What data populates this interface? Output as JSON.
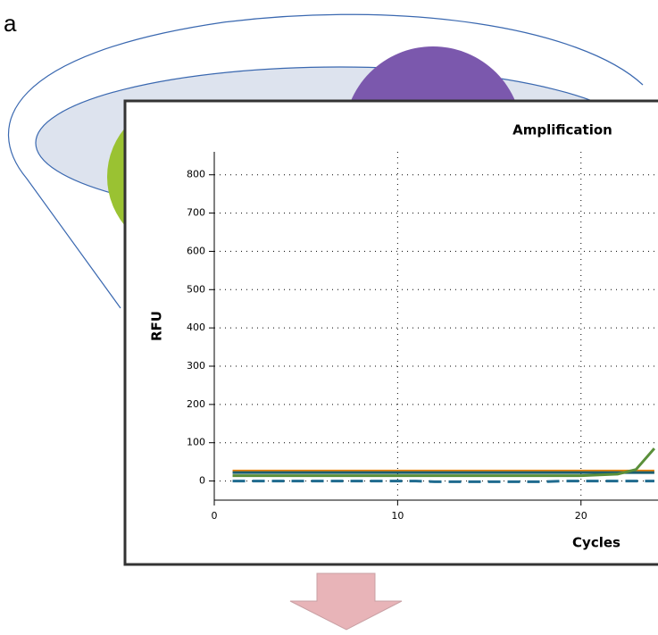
{
  "panel_label": "a",
  "chart_data": {
    "type": "line",
    "title": "Amplification",
    "x_label": "Cycles",
    "y_label": "RFU",
    "x": [
      1,
      2,
      3,
      4,
      5,
      6,
      7,
      8,
      9,
      10,
      11,
      12,
      13,
      14,
      15,
      16,
      17,
      18,
      19,
      20,
      21,
      22,
      23,
      24
    ],
    "series": [
      {
        "color": "#e8820c",
        "dash": false,
        "values": [
          26,
          26,
          26,
          26,
          26,
          26,
          26,
          26,
          26,
          26,
          26,
          26,
          26,
          26,
          26,
          26,
          26,
          26,
          26,
          26,
          26,
          26,
          26,
          26
        ]
      },
      {
        "color": "#1b5e6e",
        "dash": false,
        "values": [
          22,
          22,
          22,
          22,
          22,
          22,
          22,
          22,
          22,
          22,
          22,
          22,
          22,
          22,
          22,
          22,
          22,
          22,
          22,
          22,
          22,
          22,
          22,
          22
        ]
      },
      {
        "color": "#1f6b8f",
        "dash": true,
        "values": [
          0,
          0,
          0,
          0,
          0,
          0,
          0,
          0,
          0,
          0,
          0,
          -2,
          -2,
          -2,
          -2,
          -2,
          -2,
          -2,
          0,
          0,
          0,
          0,
          0,
          0
        ]
      },
      {
        "color": "#5a8f3a",
        "dash": false,
        "values": [
          14,
          14,
          14,
          14,
          14,
          14,
          14,
          14,
          14,
          14,
          14,
          14,
          14,
          14,
          14,
          14,
          14,
          14,
          14,
          14,
          16,
          18,
          30,
          85
        ]
      }
    ],
    "xlim": [
      0,
      24.2
    ],
    "ylim": [
      -50,
      860
    ],
    "xticks": [
      0,
      10,
      20
    ],
    "yticks": [
      0,
      100,
      200,
      300,
      400,
      500,
      600,
      700,
      800
    ],
    "grid": true
  }
}
